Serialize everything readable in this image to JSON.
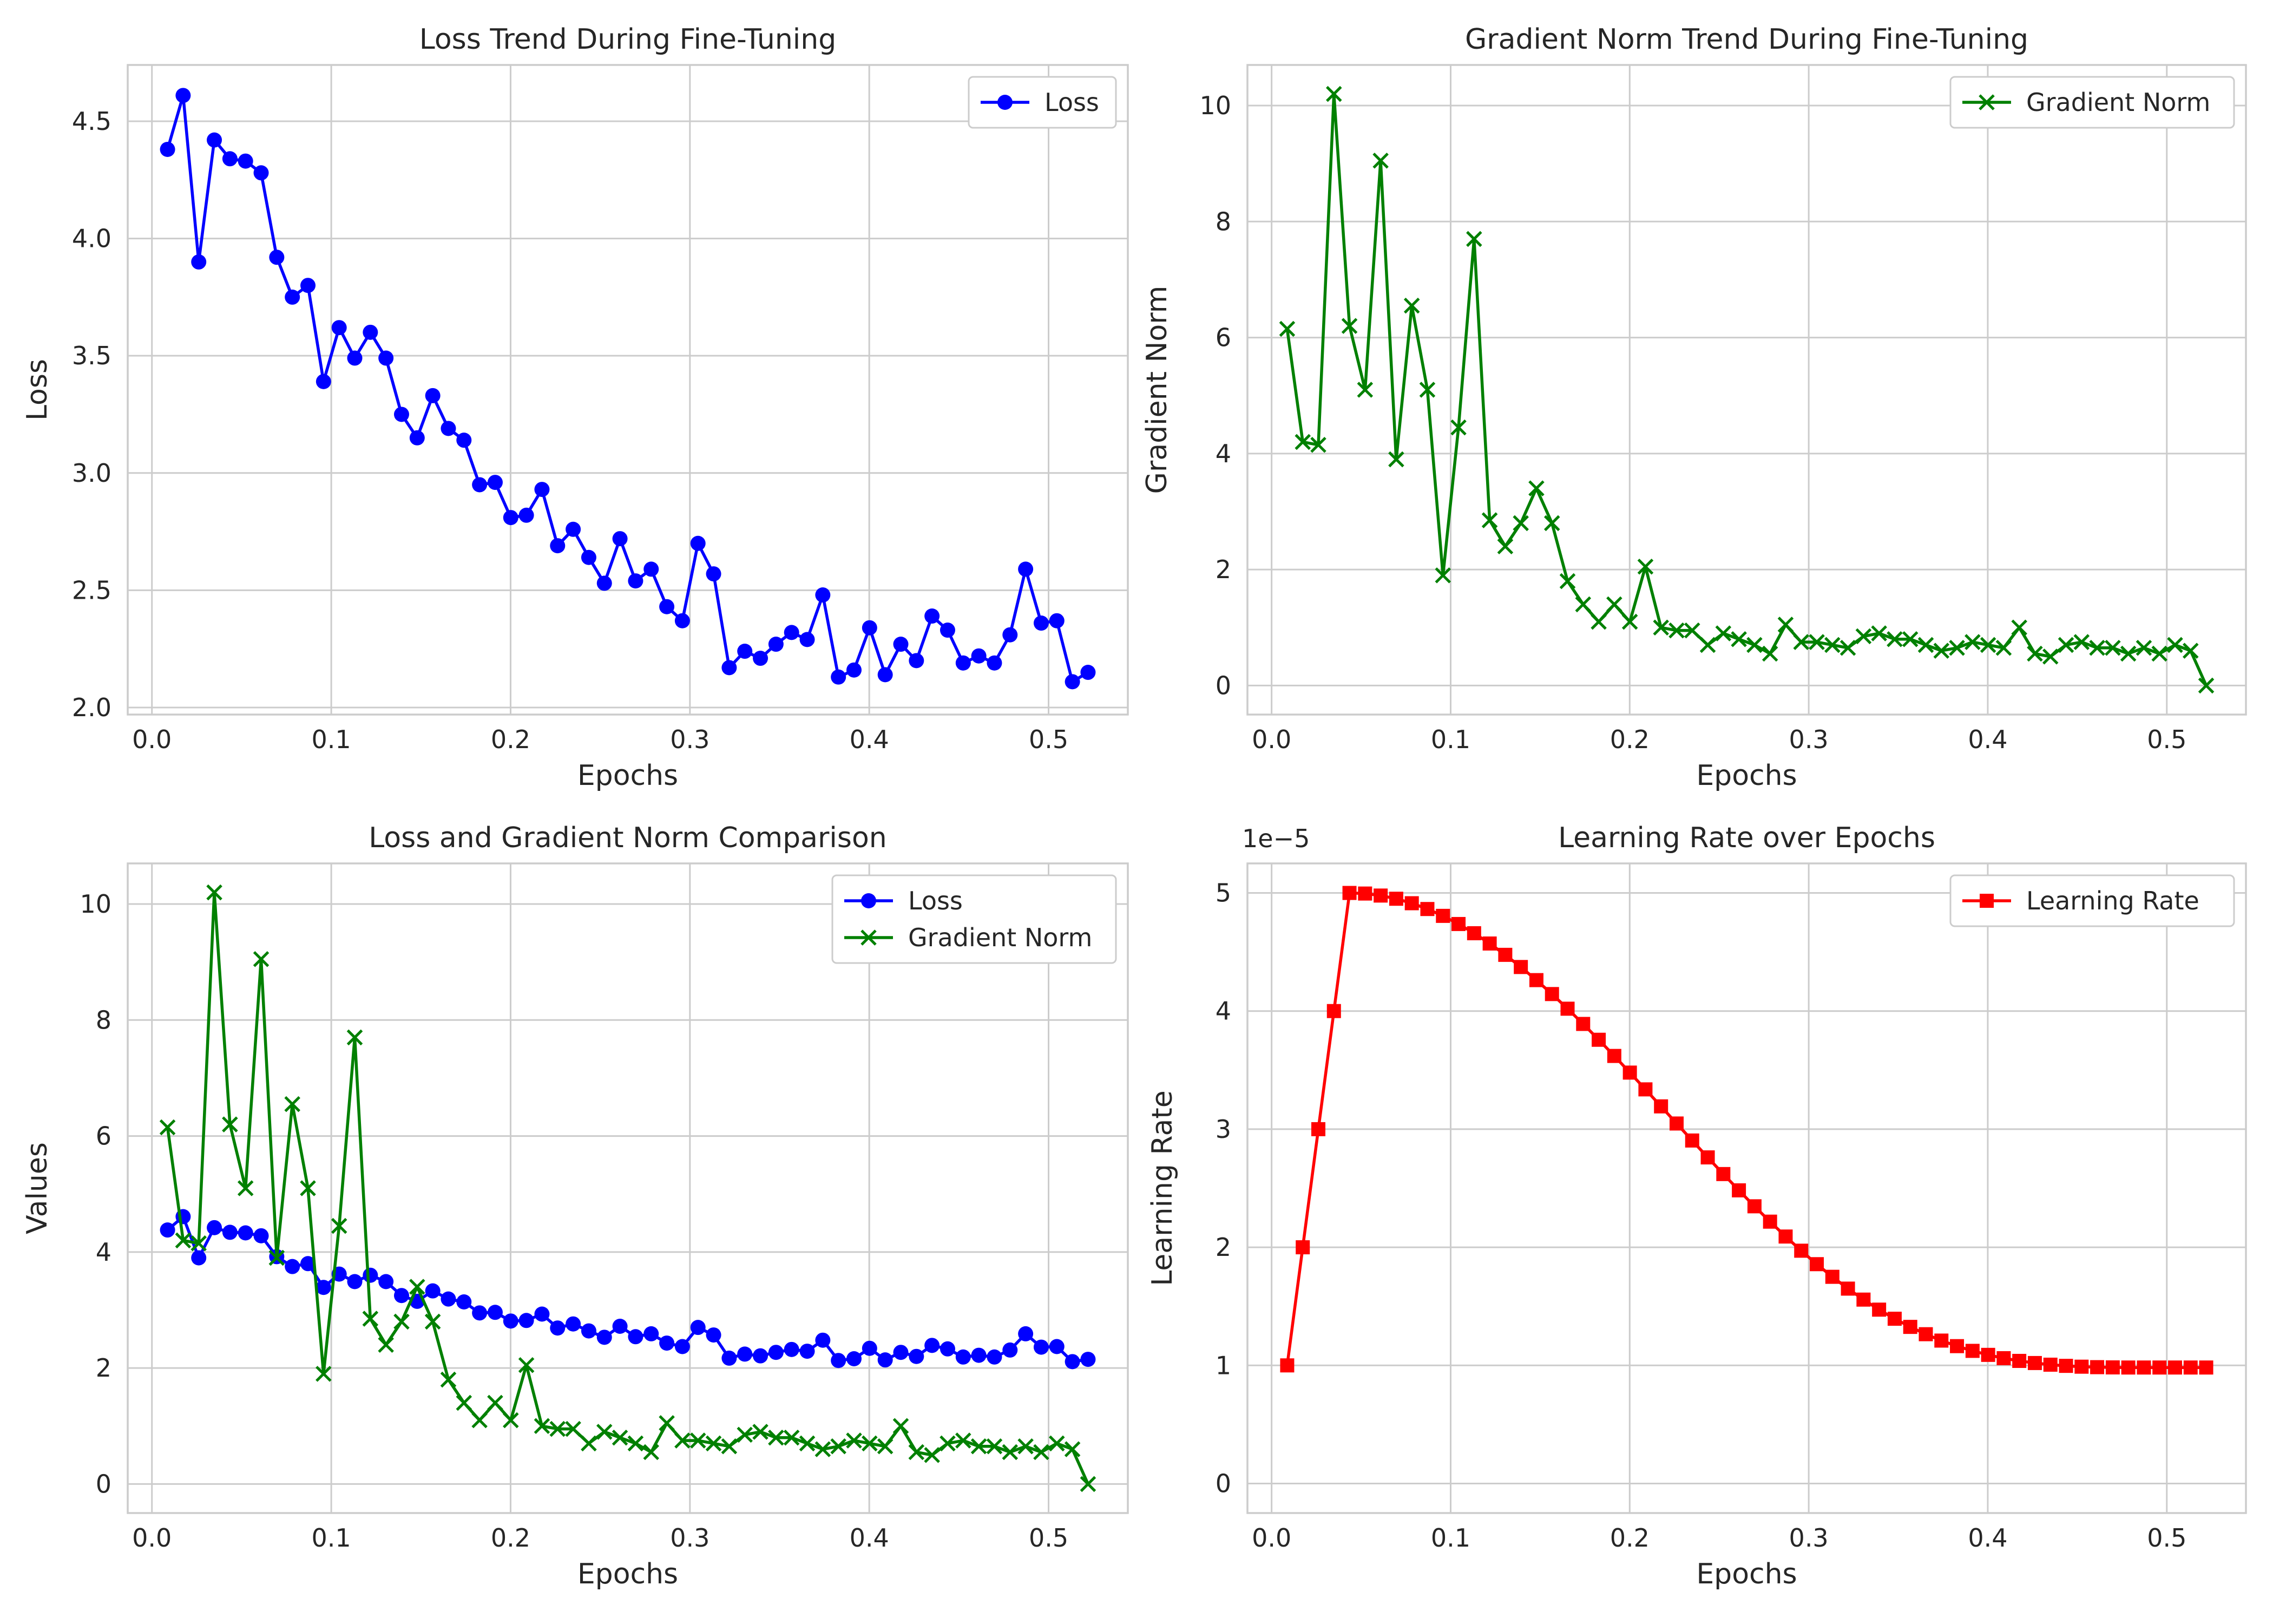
{
  "colors": {
    "loss": "#0000ff",
    "grad": "#008000",
    "lr": "#ff0000"
  },
  "epochs": [
    0.0087,
    0.0174,
    0.0261,
    0.0348,
    0.0435,
    0.0522,
    0.0609,
    0.0696,
    0.0783,
    0.087,
    0.0957,
    0.1044,
    0.1131,
    0.1218,
    0.1305,
    0.1392,
    0.1479,
    0.1566,
    0.1653,
    0.174,
    0.1827,
    0.1914,
    0.2001,
    0.2088,
    0.2175,
    0.2262,
    0.2349,
    0.2436,
    0.2523,
    0.261,
    0.2697,
    0.2784,
    0.2871,
    0.2958,
    0.3045,
    0.3132,
    0.3219,
    0.3306,
    0.3393,
    0.348,
    0.3567,
    0.3654,
    0.3741,
    0.3828,
    0.3915,
    0.4002,
    0.4089,
    0.4176,
    0.4263,
    0.435,
    0.4437,
    0.4524,
    0.4611,
    0.4698,
    0.4785,
    0.4872,
    0.4959,
    0.5046,
    0.5133,
    0.522
  ],
  "loss": [
    4.38,
    4.61,
    3.9,
    4.42,
    4.34,
    4.33,
    4.28,
    3.92,
    3.75,
    3.8,
    3.39,
    3.62,
    3.49,
    3.6,
    3.49,
    3.25,
    3.15,
    3.33,
    3.19,
    3.14,
    2.95,
    2.96,
    2.81,
    2.82,
    2.93,
    2.69,
    2.76,
    2.64,
    2.53,
    2.72,
    2.54,
    2.59,
    2.43,
    2.37,
    2.7,
    2.57,
    2.17,
    2.24,
    2.21,
    2.27,
    2.32,
    2.29,
    2.48,
    2.13,
    2.16,
    2.34,
    2.14,
    2.27,
    2.2,
    2.39,
    2.33,
    2.19,
    2.22,
    2.19,
    2.31,
    2.59,
    2.36,
    2.37,
    2.11,
    2.15
  ],
  "grad_norm": [
    6.15,
    4.2,
    4.15,
    10.2,
    6.2,
    5.1,
    9.05,
    3.9,
    6.55,
    5.1,
    1.9,
    4.45,
    7.7,
    2.85,
    2.4,
    2.8,
    3.4,
    2.8,
    1.8,
    1.4,
    1.1,
    1.4,
    1.1,
    2.05,
    1.0,
    0.95,
    0.95,
    0.7,
    0.9,
    0.8,
    0.7,
    0.55,
    1.05,
    0.75,
    0.75,
    0.7,
    0.65,
    0.85,
    0.9,
    0.8,
    0.8,
    0.7,
    0.6,
    0.65,
    0.75,
    0.7,
    0.65,
    1.0,
    0.55,
    0.5,
    0.7,
    0.75,
    0.65,
    0.65,
    0.55,
    0.65,
    0.55,
    0.7,
    0.6,
    0.0
  ],
  "charts": [
    {
      "id": "loss",
      "type": "line",
      "title": "Loss Trend During Fine-Tuning",
      "xlabel": "Epochs",
      "ylabel": "Loss",
      "xlim": [
        -0.0135,
        0.5442
      ],
      "ylim": [
        1.97,
        4.74
      ],
      "xticks": [
        "0.0",
        "0.1",
        "0.2",
        "0.3",
        "0.4",
        "0.5"
      ],
      "yticks": [
        "2.0",
        "2.5",
        "3.0",
        "3.5",
        "4.0",
        "4.5"
      ],
      "legend_position": "top-right",
      "series": [
        {
          "name": "Loss",
          "source": "loss",
          "marker": "circle",
          "color": "loss"
        }
      ]
    },
    {
      "id": "grad",
      "type": "line",
      "title": "Gradient Norm Trend During Fine-Tuning",
      "xlabel": "Epochs",
      "ylabel": "Gradient Norm",
      "xlim": [
        -0.0135,
        0.5442
      ],
      "ylim": [
        -0.5,
        10.7
      ],
      "xticks": [
        "0.0",
        "0.1",
        "0.2",
        "0.3",
        "0.4",
        "0.5"
      ],
      "yticks": [
        "0",
        "2",
        "4",
        "6",
        "8",
        "10"
      ],
      "legend_position": "top-right",
      "series": [
        {
          "name": "Gradient Norm",
          "source": "grad_norm",
          "marker": "x",
          "color": "grad"
        }
      ]
    },
    {
      "id": "compare",
      "type": "line",
      "title": "Loss and Gradient Norm Comparison",
      "xlabel": "Epochs",
      "ylabel": "Values",
      "xlim": [
        -0.0135,
        0.5442
      ],
      "ylim": [
        -0.5,
        10.7
      ],
      "xticks": [
        "0.0",
        "0.1",
        "0.2",
        "0.3",
        "0.4",
        "0.5"
      ],
      "yticks": [
        "0",
        "2",
        "4",
        "6",
        "8",
        "10"
      ],
      "legend_position": "top-right",
      "series": [
        {
          "name": "Loss",
          "source": "loss",
          "marker": "circle",
          "color": "loss"
        },
        {
          "name": "Gradient Norm",
          "source": "grad_norm",
          "marker": "x",
          "color": "grad"
        }
      ]
    },
    {
      "id": "lr",
      "type": "line",
      "title": "Learning Rate over Epochs",
      "xlabel": "Epochs",
      "ylabel": "Learning Rate",
      "offset_label": "1e−5",
      "xlim": [
        -0.0135,
        0.5442
      ],
      "ylim": [
        -0.25,
        5.25
      ],
      "xticks": [
        "0.0",
        "0.1",
        "0.2",
        "0.3",
        "0.4",
        "0.5"
      ],
      "yticks": [
        "0",
        "1",
        "2",
        "3",
        "4",
        "5"
      ],
      "legend_position": "top-right",
      "series": [
        {
          "name": "Learning Rate",
          "marker": "square",
          "color": "lr",
          "values": [
            1.0,
            2.0,
            3.0,
            4.0,
            5.0,
            4.995,
            4.978,
            4.951,
            4.913,
            4.864,
            4.806,
            4.737,
            4.659,
            4.572,
            4.476,
            4.373,
            4.262,
            4.144,
            4.02,
            3.891,
            3.757,
            3.62,
            3.479,
            3.337,
            3.193,
            3.048,
            2.904,
            2.761,
            2.62,
            2.482,
            2.347,
            2.217,
            2.091,
            1.971,
            1.857,
            1.75,
            1.65,
            1.557,
            1.472,
            1.395,
            1.326,
            1.264,
            1.21,
            1.163,
            1.123,
            1.089,
            1.061,
            1.038,
            1.02,
            1.006,
            0.996,
            0.989,
            0.985,
            0.983,
            0.982,
            0.982,
            0.982,
            0.982,
            0.982,
            0.982
          ]
        }
      ]
    }
  ]
}
